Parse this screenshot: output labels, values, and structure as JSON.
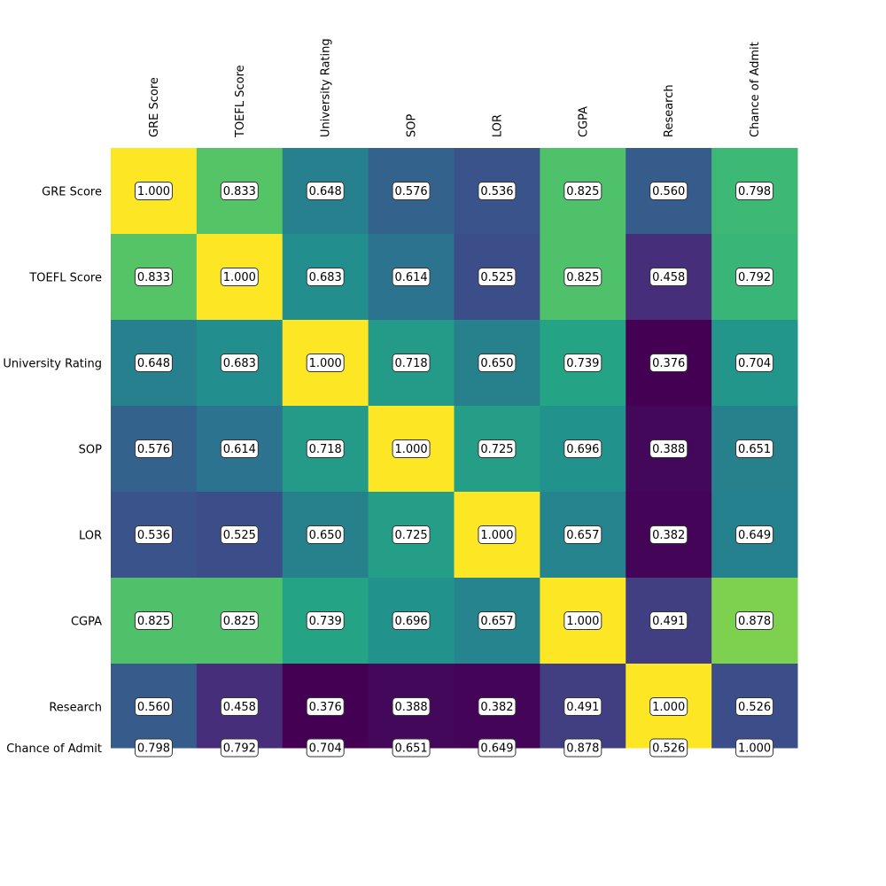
{
  "chart_data": {
    "type": "heatmap",
    "colormap": "viridis",
    "grid": false,
    "vmin": 0.376,
    "vmax": 1.0,
    "variables": [
      "GRE Score",
      "TOEFL Score",
      "University Rating",
      "SOP",
      "LOR",
      "CGPA",
      "Research",
      "Chance of Admit"
    ],
    "matrix": [
      [
        1.0,
        0.833,
        0.648,
        0.576,
        0.536,
        0.825,
        0.56,
        0.798
      ],
      [
        0.833,
        1.0,
        0.683,
        0.614,
        0.525,
        0.825,
        0.458,
        0.792
      ],
      [
        0.648,
        0.683,
        1.0,
        0.718,
        0.65,
        0.739,
        0.376,
        0.704
      ],
      [
        0.576,
        0.614,
        0.718,
        1.0,
        0.725,
        0.696,
        0.388,
        0.651
      ],
      [
        0.536,
        0.525,
        0.65,
        0.725,
        1.0,
        0.657,
        0.382,
        0.649
      ],
      [
        0.825,
        0.825,
        0.739,
        0.696,
        0.657,
        1.0,
        0.491,
        0.878
      ],
      [
        0.56,
        0.458,
        0.376,
        0.388,
        0.382,
        0.491,
        1.0,
        0.526
      ],
      [
        0.798,
        0.792,
        0.704,
        0.651,
        0.649,
        0.878,
        0.526,
        1.0
      ]
    ],
    "value_format": "3 decimals"
  }
}
